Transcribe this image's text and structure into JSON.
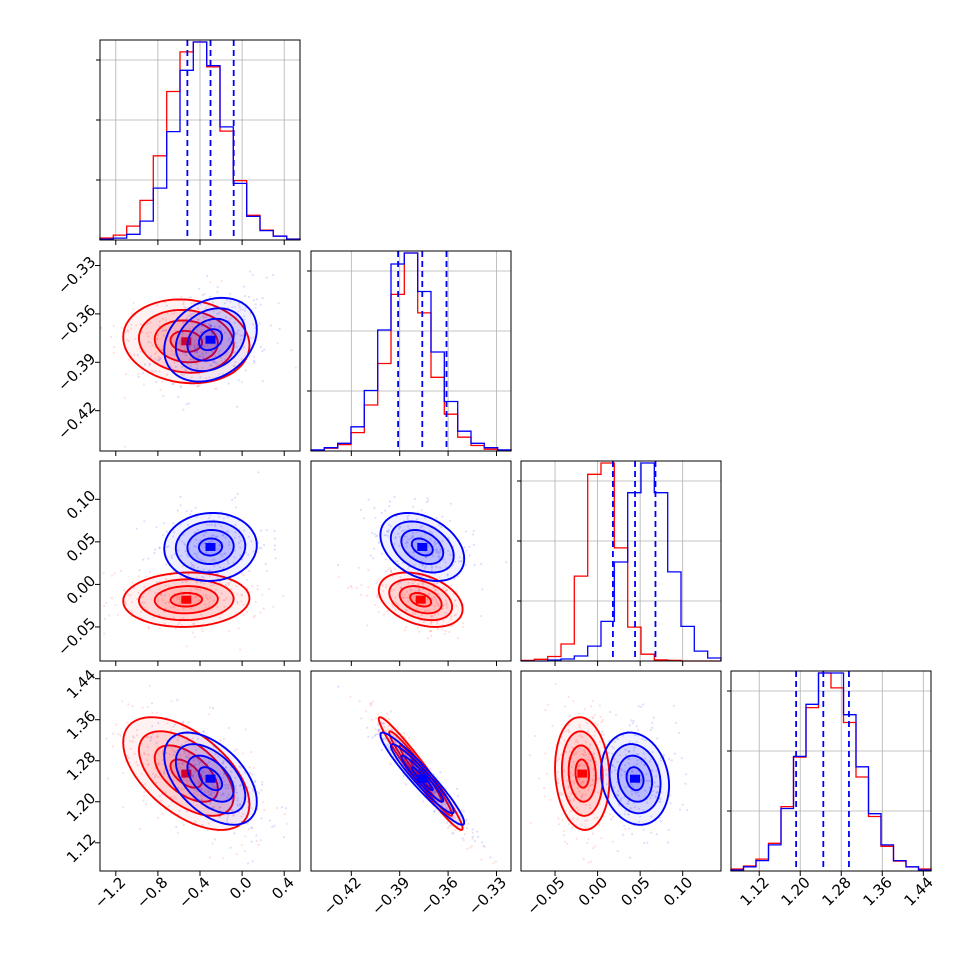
{
  "chart_data": {
    "type": "corner",
    "grid": true,
    "colors": {
      "red": "#ff0000",
      "blue": "#0000ff"
    },
    "variables": [
      {
        "range": [
          -1.35,
          0.55
        ],
        "ticks": [
          -1.2,
          -0.8,
          -0.4,
          0.0,
          0.4
        ],
        "tick_labels": [
          "−1.2",
          "−0.8",
          "−0.4",
          "0.0",
          "0.4"
        ]
      },
      {
        "range": [
          -0.445,
          -0.321
        ],
        "ticks": [
          -0.42,
          -0.39,
          -0.36,
          -0.33
        ],
        "tick_labels": [
          "−0.42",
          "−0.39",
          "−0.36",
          "−0.33"
        ]
      },
      {
        "range": [
          -0.09,
          0.145
        ],
        "ticks": [
          -0.05,
          0.0,
          0.05,
          0.1
        ],
        "tick_labels": [
          "−0.05",
          "0.00",
          "0.05",
          "0.10"
        ]
      },
      {
        "range": [
          1.065,
          1.455
        ],
        "ticks": [
          1.12,
          1.2,
          1.28,
          1.36,
          1.44
        ],
        "tick_labels": [
          "1.12",
          "1.20",
          "1.28",
          "1.36",
          "1.44"
        ]
      }
    ],
    "series": [
      {
        "color": "red",
        "hist": [
          [
            2,
            5,
            14,
            40,
            85,
            150,
            190,
            200,
            175,
            110,
            60,
            25,
            10,
            4,
            1
          ],
          [
            1,
            3,
            7,
            20,
            50,
            95,
            170,
            215,
            150,
            80,
            40,
            15,
            6,
            2,
            1
          ],
          [
            1,
            3,
            8,
            30,
            150,
            330,
            350,
            200,
            60,
            12,
            2,
            1,
            0,
            0,
            0
          ],
          [
            2,
            5,
            12,
            28,
            65,
            115,
            165,
            200,
            185,
            150,
            95,
            55,
            25,
            10,
            4,
            2
          ]
        ],
        "hist_max": [
          200,
          215,
          350,
          200
        ],
        "means": [
          -0.53,
          -0.377,
          -0.018,
          1.255
        ],
        "sigmas": [
          0.3,
          0.013,
          0.016,
          0.055
        ],
        "correlations": [
          [
            0,
            1,
            -0.1
          ],
          [
            0,
            2,
            0.05
          ],
          [
            0,
            3,
            -0.55
          ],
          [
            1,
            2,
            -0.35
          ],
          [
            1,
            3,
            -0.97
          ],
          [
            2,
            3,
            -0.1
          ]
        ]
      },
      {
        "color": "blue",
        "hist": [
          [
            1,
            2,
            6,
            20,
            55,
            115,
            180,
            210,
            185,
            120,
            60,
            25,
            10,
            4,
            1
          ],
          [
            1,
            3,
            7,
            22,
            55,
            110,
            170,
            180,
            145,
            90,
            45,
            18,
            7,
            3,
            1
          ],
          [
            0,
            0,
            1,
            2,
            5,
            15,
            40,
            100,
            170,
            200,
            170,
            90,
            35,
            10,
            3
          ],
          [
            1,
            4,
            10,
            25,
            60,
            110,
            160,
            190,
            190,
            150,
            100,
            55,
            25,
            10,
            4,
            1
          ]
        ],
        "hist_max": [
          210,
          180,
          200,
          190
        ],
        "means": [
          -0.3,
          -0.376,
          0.044,
          1.245
        ],
        "sigmas": [
          0.22,
          0.013,
          0.02,
          0.045
        ],
        "quantiles": [
          [
            -0.52,
            -0.3,
            -0.08
          ],
          [
            -0.391,
            -0.376,
            -0.361
          ],
          [
            0.018,
            0.044,
            0.068
          ],
          [
            1.192,
            1.245,
            1.295
          ]
        ],
        "correlations": [
          [
            0,
            1,
            0.25
          ],
          [
            0,
            2,
            0.05
          ],
          [
            0,
            3,
            -0.5
          ],
          [
            1,
            2,
            -0.35
          ],
          [
            1,
            3,
            -0.95
          ],
          [
            2,
            3,
            -0.15
          ]
        ]
      }
    ]
  }
}
